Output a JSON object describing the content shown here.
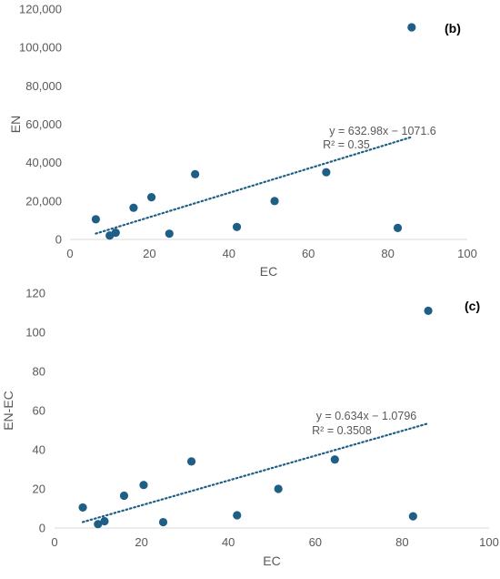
{
  "colors": {
    "point": "#1f5f86",
    "trend": "#1f5f86",
    "axis": "#d9d9d9",
    "text": "#595959",
    "label": "#000000"
  },
  "chart_data": [
    {
      "type": "scatter",
      "panel_label": "(b)",
      "xlabel": "EC",
      "ylabel": "EN",
      "xlim": [
        0,
        100
      ],
      "ylim": [
        0,
        120000
      ],
      "x_ticks": [
        0,
        20,
        40,
        60,
        80,
        100
      ],
      "x_tick_labels": [
        "0",
        "20",
        "40",
        "60",
        "80",
        "100"
      ],
      "y_ticks": [
        0,
        20000,
        40000,
        60000,
        80000,
        100000,
        120000
      ],
      "y_tick_labels": [
        "0",
        "20,000",
        "40,000",
        "60,000",
        "80,000",
        "100,000",
        "120,000"
      ],
      "grid": false,
      "points": [
        {
          "x": 6.5,
          "y": 10500
        },
        {
          "x": 10,
          "y": 2000
        },
        {
          "x": 11.5,
          "y": 3500
        },
        {
          "x": 16,
          "y": 16500
        },
        {
          "x": 20.5,
          "y": 22000
        },
        {
          "x": 25,
          "y": 3000
        },
        {
          "x": 31.5,
          "y": 34000
        },
        {
          "x": 42,
          "y": 6500
        },
        {
          "x": 51.5,
          "y": 20000
        },
        {
          "x": 64.5,
          "y": 35000
        },
        {
          "x": 82.5,
          "y": 6000
        },
        {
          "x": 86,
          "y": 110500
        }
      ],
      "trendline": {
        "slope": 632.98,
        "intercept": -1071.6,
        "x_range": [
          6.5,
          86
        ],
        "style": "dotted"
      },
      "annotations": [
        "y = 632.98x − 1071.6",
        "R² = 0.35"
      ]
    },
    {
      "type": "scatter",
      "panel_label": "(c)",
      "xlabel": "EC",
      "ylabel": "EN-EC",
      "xlim": [
        0,
        100
      ],
      "ylim": [
        0,
        120
      ],
      "x_ticks": [
        0,
        20,
        40,
        60,
        80,
        100
      ],
      "x_tick_labels": [
        "0",
        "20",
        "40",
        "60",
        "80",
        "100"
      ],
      "y_ticks": [
        0,
        20,
        40,
        60,
        80,
        100,
        120
      ],
      "y_tick_labels": [
        "0",
        "20",
        "40",
        "60",
        "80",
        "100",
        "120"
      ],
      "grid": false,
      "points": [
        {
          "x": 6.5,
          "y": 10.5
        },
        {
          "x": 10,
          "y": 2
        },
        {
          "x": 11.5,
          "y": 3.5
        },
        {
          "x": 16,
          "y": 16.5
        },
        {
          "x": 20.5,
          "y": 22
        },
        {
          "x": 25,
          "y": 3
        },
        {
          "x": 31.5,
          "y": 34
        },
        {
          "x": 42,
          "y": 6.5
        },
        {
          "x": 51.5,
          "y": 20
        },
        {
          "x": 64.5,
          "y": 35
        },
        {
          "x": 82.5,
          "y": 6
        },
        {
          "x": 86,
          "y": 111
        }
      ],
      "trendline": {
        "slope": 0.634,
        "intercept": -1.0796,
        "x_range": [
          6.5,
          86
        ],
        "style": "dotted"
      },
      "annotations": [
        "y = 0.634x − 1.0796",
        "R² = 0.3508"
      ]
    }
  ]
}
